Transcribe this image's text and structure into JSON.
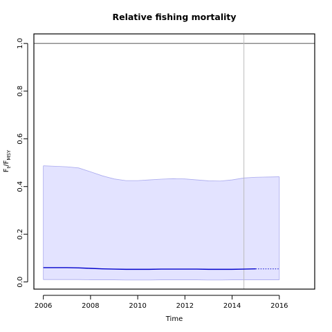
{
  "chart_data": {
    "type": "line",
    "title": "Relative fishing mortality",
    "xlabel": "Time",
    "ylabel_main": "F",
    "ylabel_sub1": "t",
    "ylabel_mid": "/F",
    "ylabel_sub2": "MSY",
    "xlim": [
      2005.6,
      2017.5
    ],
    "ylim": [
      -0.03,
      1.04
    ],
    "xticks": [
      2006,
      2008,
      2010,
      2012,
      2014,
      2016
    ],
    "yticks": [
      0.0,
      0.2,
      0.4,
      0.6,
      0.8,
      1.0
    ],
    "reference_line_y": 1.0,
    "vertical_marker_x": 2014.5,
    "colors": {
      "estimate": "#0000cc",
      "band_fill": "#e3e3ff",
      "band_edge": "#aaaaee",
      "reference": "#555555",
      "marker": "#bbbbbb"
    },
    "series": [
      {
        "x": [
          2006,
          2006.5,
          2007,
          2007.5,
          2008,
          2008.5,
          2009,
          2009.5,
          2010,
          2010.5,
          2011,
          2011.5,
          2012,
          2012.5,
          2013,
          2013.5,
          2014,
          2014.5,
          2015
        ],
        "values": [
          0.06,
          0.06,
          0.06,
          0.059,
          0.057,
          0.055,
          0.054,
          0.053,
          0.053,
          0.053,
          0.054,
          0.054,
          0.054,
          0.054,
          0.053,
          0.053,
          0.053,
          0.054,
          0.055
        ],
        "style": "solid"
      },
      {
        "x": [
          2015,
          2016
        ],
        "values": [
          0.055,
          0.055
        ],
        "style": "dotted"
      }
    ],
    "band": {
      "x": [
        2006,
        2006.5,
        2007,
        2007.5,
        2008,
        2008.5,
        2009,
        2009.5,
        2010,
        2010.5,
        2011,
        2011.5,
        2012,
        2012.5,
        2013,
        2013.5,
        2014,
        2014.5,
        2015,
        2015.5,
        2016
      ],
      "upper": [
        0.487,
        0.485,
        0.483,
        0.478,
        0.462,
        0.445,
        0.432,
        0.425,
        0.425,
        0.428,
        0.431,
        0.433,
        0.432,
        0.428,
        0.424,
        0.423,
        0.428,
        0.436,
        0.439,
        0.44,
        0.441
      ],
      "lower": [
        0.01,
        0.01,
        0.01,
        0.01,
        0.009,
        0.009,
        0.009,
        0.008,
        0.008,
        0.008,
        0.009,
        0.009,
        0.009,
        0.009,
        0.008,
        0.008,
        0.009,
        0.009,
        0.009,
        0.009,
        0.009
      ]
    }
  }
}
